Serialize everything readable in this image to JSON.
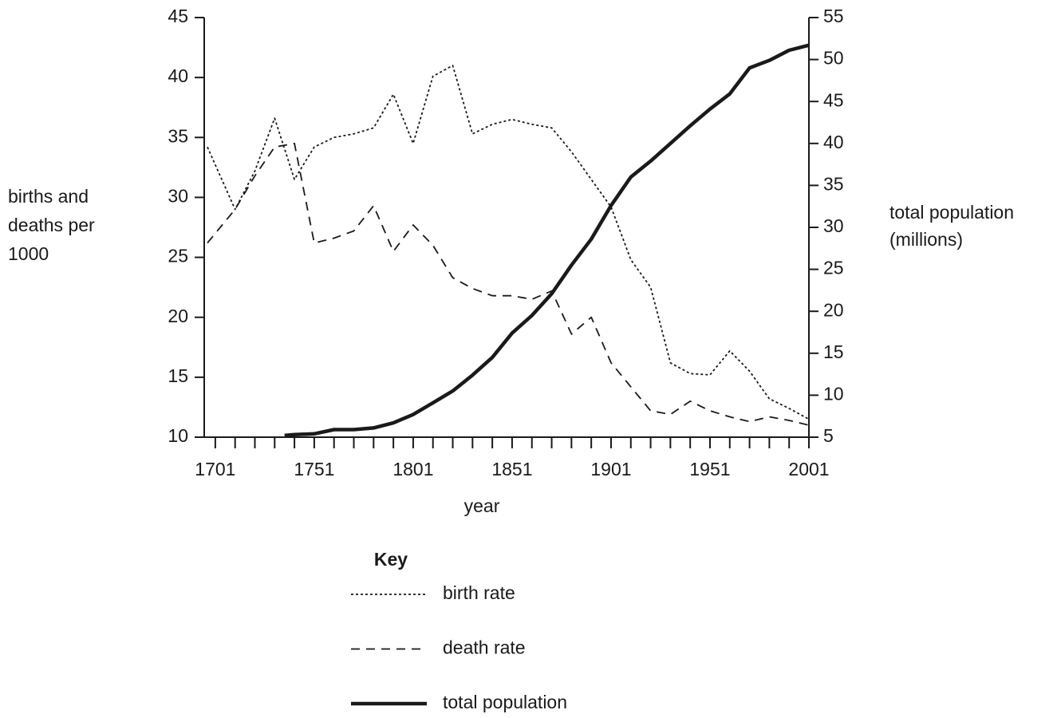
{
  "chart_data": {
    "type": "line",
    "xlabel": "year",
    "ylabel": [
      "births and",
      "deaths per",
      "1000"
    ],
    "y2label": [
      "total population",
      "(millions)"
    ],
    "legend_title": "Key",
    "xlim": [
      1695.4,
      2001
    ],
    "xticks": [
      1701,
      1751,
      1801,
      1851,
      1901,
      1951,
      2001
    ],
    "xminorticks": [
      1711,
      1721,
      1731,
      1741,
      1761,
      1771,
      1781,
      1791,
      1811,
      1821,
      1831,
      1841,
      1861,
      1871,
      1881,
      1891,
      1911,
      1921,
      1931,
      1941,
      1961,
      1971,
      1981,
      1991
    ],
    "ylim": [
      10,
      45
    ],
    "yticks": [
      10,
      15,
      20,
      25,
      30,
      35,
      40,
      45
    ],
    "y2lim": [
      5,
      55
    ],
    "y2ticks": [
      5,
      10,
      15,
      20,
      25,
      30,
      35,
      40,
      45,
      50,
      55
    ],
    "series": [
      {
        "name": "birth rate",
        "color": "#1a1a1a",
        "dash": "dotted",
        "axis": "y",
        "x": [
          1697,
          1711,
          1721,
          1731,
          1741,
          1751,
          1761,
          1771,
          1781,
          1791,
          1801,
          1811,
          1821,
          1831,
          1841,
          1851,
          1861,
          1871,
          1881,
          1891,
          1901,
          1911,
          1921,
          1931,
          1941,
          1951,
          1961,
          1971,
          1981,
          1991,
          2001
        ],
        "values": [
          34.2,
          29.0,
          32.2,
          36.6,
          31.5,
          34.2,
          35.0,
          35.3,
          35.8,
          38.6,
          34.5,
          40.1,
          41.0,
          35.3,
          36.1,
          36.5,
          36.1,
          35.8,
          33.8,
          31.5,
          29.2,
          24.8,
          22.5,
          16.2,
          15.3,
          15.2,
          17.2,
          15.5,
          13.2,
          12.4,
          11.5
        ]
      },
      {
        "name": "death rate",
        "color": "#1a1a1a",
        "dash": "dashed",
        "axis": "y",
        "x": [
          1697,
          1711,
          1721,
          1731,
          1741,
          1751,
          1761,
          1771,
          1781,
          1791,
          1801,
          1811,
          1821,
          1831,
          1841,
          1851,
          1861,
          1871,
          1881,
          1891,
          1901,
          1911,
          1921,
          1931,
          1941,
          1951,
          1961,
          1971,
          1981,
          1991,
          2001
        ],
        "values": [
          26.2,
          29.0,
          31.8,
          34.2,
          34.5,
          26.2,
          26.6,
          27.2,
          29.3,
          25.5,
          27.7,
          26.0,
          23.3,
          22.4,
          21.8,
          21.8,
          21.5,
          22.2,
          18.6,
          20.0,
          16.2,
          14.2,
          12.2,
          11.9,
          13.0,
          12.2,
          11.7,
          11.3,
          11.7,
          11.4,
          11.0
        ]
      },
      {
        "name": "total population",
        "color": "#1a1a1a",
        "dash": "solid",
        "axis": "y2",
        "x": [
          1736,
          1741,
          1751,
          1761,
          1771,
          1781,
          1791,
          1801,
          1811,
          1821,
          1831,
          1841,
          1851,
          1861,
          1871,
          1881,
          1891,
          1901,
          1911,
          1921,
          1931,
          1941,
          1951,
          1961,
          1971,
          1981,
          1991,
          2001
        ],
        "values": [
          5.2,
          5.3,
          5.4,
          5.9,
          5.9,
          6.1,
          6.7,
          7.7,
          9.1,
          10.5,
          12.4,
          14.5,
          17.4,
          19.5,
          22.1,
          25.5,
          28.6,
          32.6,
          36.0,
          37.9,
          40.0,
          42.1,
          44.1,
          45.9,
          49.0,
          49.9,
          51.1,
          51.7
        ]
      }
    ]
  }
}
